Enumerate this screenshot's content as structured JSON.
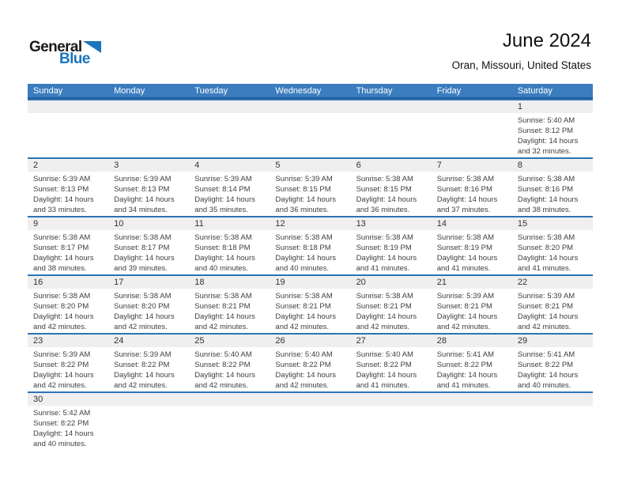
{
  "page": {
    "logo": {
      "text_top": "General",
      "text_bottom": "Blue",
      "triangle_icon": "blue-flag-triangle"
    },
    "title": "June 2024",
    "subtitle": "Oran, Missouri, United States"
  },
  "colors": {
    "header_bg": "#3b7dbe",
    "header_underline": "#205d9b",
    "week_separator": "#2d74b6",
    "number_band_bg": "#efefef",
    "logo_blue": "#1c75bc",
    "body_text": "#3f3f3f"
  },
  "calendar": {
    "weekdays": [
      "Sunday",
      "Monday",
      "Tuesday",
      "Wednesday",
      "Thursday",
      "Friday",
      "Saturday"
    ],
    "weeks": [
      [
        null,
        null,
        null,
        null,
        null,
        null,
        {
          "day": "1",
          "lines": [
            "Sunrise: 5:40 AM",
            "Sunset: 8:12 PM",
            "Daylight: 14 hours",
            "and 32 minutes."
          ]
        }
      ],
      [
        {
          "day": "2",
          "lines": [
            "Sunrise: 5:39 AM",
            "Sunset: 8:13 PM",
            "Daylight: 14 hours",
            "and 33 minutes."
          ]
        },
        {
          "day": "3",
          "lines": [
            "Sunrise: 5:39 AM",
            "Sunset: 8:13 PM",
            "Daylight: 14 hours",
            "and 34 minutes."
          ]
        },
        {
          "day": "4",
          "lines": [
            "Sunrise: 5:39 AM",
            "Sunset: 8:14 PM",
            "Daylight: 14 hours",
            "and 35 minutes."
          ]
        },
        {
          "day": "5",
          "lines": [
            "Sunrise: 5:39 AM",
            "Sunset: 8:15 PM",
            "Daylight: 14 hours",
            "and 36 minutes."
          ]
        },
        {
          "day": "6",
          "lines": [
            "Sunrise: 5:38 AM",
            "Sunset: 8:15 PM",
            "Daylight: 14 hours",
            "and 36 minutes."
          ]
        },
        {
          "day": "7",
          "lines": [
            "Sunrise: 5:38 AM",
            "Sunset: 8:16 PM",
            "Daylight: 14 hours",
            "and 37 minutes."
          ]
        },
        {
          "day": "8",
          "lines": [
            "Sunrise: 5:38 AM",
            "Sunset: 8:16 PM",
            "Daylight: 14 hours",
            "and 38 minutes."
          ]
        }
      ],
      [
        {
          "day": "9",
          "lines": [
            "Sunrise: 5:38 AM",
            "Sunset: 8:17 PM",
            "Daylight: 14 hours",
            "and 38 minutes."
          ]
        },
        {
          "day": "10",
          "lines": [
            "Sunrise: 5:38 AM",
            "Sunset: 8:17 PM",
            "Daylight: 14 hours",
            "and 39 minutes."
          ]
        },
        {
          "day": "11",
          "lines": [
            "Sunrise: 5:38 AM",
            "Sunset: 8:18 PM",
            "Daylight: 14 hours",
            "and 40 minutes."
          ]
        },
        {
          "day": "12",
          "lines": [
            "Sunrise: 5:38 AM",
            "Sunset: 8:18 PM",
            "Daylight: 14 hours",
            "and 40 minutes."
          ]
        },
        {
          "day": "13",
          "lines": [
            "Sunrise: 5:38 AM",
            "Sunset: 8:19 PM",
            "Daylight: 14 hours",
            "and 41 minutes."
          ]
        },
        {
          "day": "14",
          "lines": [
            "Sunrise: 5:38 AM",
            "Sunset: 8:19 PM",
            "Daylight: 14 hours",
            "and 41 minutes."
          ]
        },
        {
          "day": "15",
          "lines": [
            "Sunrise: 5:38 AM",
            "Sunset: 8:20 PM",
            "Daylight: 14 hours",
            "and 41 minutes."
          ]
        }
      ],
      [
        {
          "day": "16",
          "lines": [
            "Sunrise: 5:38 AM",
            "Sunset: 8:20 PM",
            "Daylight: 14 hours",
            "and 42 minutes."
          ]
        },
        {
          "day": "17",
          "lines": [
            "Sunrise: 5:38 AM",
            "Sunset: 8:20 PM",
            "Daylight: 14 hours",
            "and 42 minutes."
          ]
        },
        {
          "day": "18",
          "lines": [
            "Sunrise: 5:38 AM",
            "Sunset: 8:21 PM",
            "Daylight: 14 hours",
            "and 42 minutes."
          ]
        },
        {
          "day": "19",
          "lines": [
            "Sunrise: 5:38 AM",
            "Sunset: 8:21 PM",
            "Daylight: 14 hours",
            "and 42 minutes."
          ]
        },
        {
          "day": "20",
          "lines": [
            "Sunrise: 5:38 AM",
            "Sunset: 8:21 PM",
            "Daylight: 14 hours",
            "and 42 minutes."
          ]
        },
        {
          "day": "21",
          "lines": [
            "Sunrise: 5:39 AM",
            "Sunset: 8:21 PM",
            "Daylight: 14 hours",
            "and 42 minutes."
          ]
        },
        {
          "day": "22",
          "lines": [
            "Sunrise: 5:39 AM",
            "Sunset: 8:21 PM",
            "Daylight: 14 hours",
            "and 42 minutes."
          ]
        }
      ],
      [
        {
          "day": "23",
          "lines": [
            "Sunrise: 5:39 AM",
            "Sunset: 8:22 PM",
            "Daylight: 14 hours",
            "and 42 minutes."
          ]
        },
        {
          "day": "24",
          "lines": [
            "Sunrise: 5:39 AM",
            "Sunset: 8:22 PM",
            "Daylight: 14 hours",
            "and 42 minutes."
          ]
        },
        {
          "day": "25",
          "lines": [
            "Sunrise: 5:40 AM",
            "Sunset: 8:22 PM",
            "Daylight: 14 hours",
            "and 42 minutes."
          ]
        },
        {
          "day": "26",
          "lines": [
            "Sunrise: 5:40 AM",
            "Sunset: 8:22 PM",
            "Daylight: 14 hours",
            "and 42 minutes."
          ]
        },
        {
          "day": "27",
          "lines": [
            "Sunrise: 5:40 AM",
            "Sunset: 8:22 PM",
            "Daylight: 14 hours",
            "and 41 minutes."
          ]
        },
        {
          "day": "28",
          "lines": [
            "Sunrise: 5:41 AM",
            "Sunset: 8:22 PM",
            "Daylight: 14 hours",
            "and 41 minutes."
          ]
        },
        {
          "day": "29",
          "lines": [
            "Sunrise: 5:41 AM",
            "Sunset: 8:22 PM",
            "Daylight: 14 hours",
            "and 40 minutes."
          ]
        }
      ],
      [
        {
          "day": "30",
          "lines": [
            "Sunrise: 5:42 AM",
            "Sunset: 8:22 PM",
            "Daylight: 14 hours",
            "and 40 minutes."
          ]
        },
        null,
        null,
        null,
        null,
        null,
        null
      ]
    ]
  }
}
